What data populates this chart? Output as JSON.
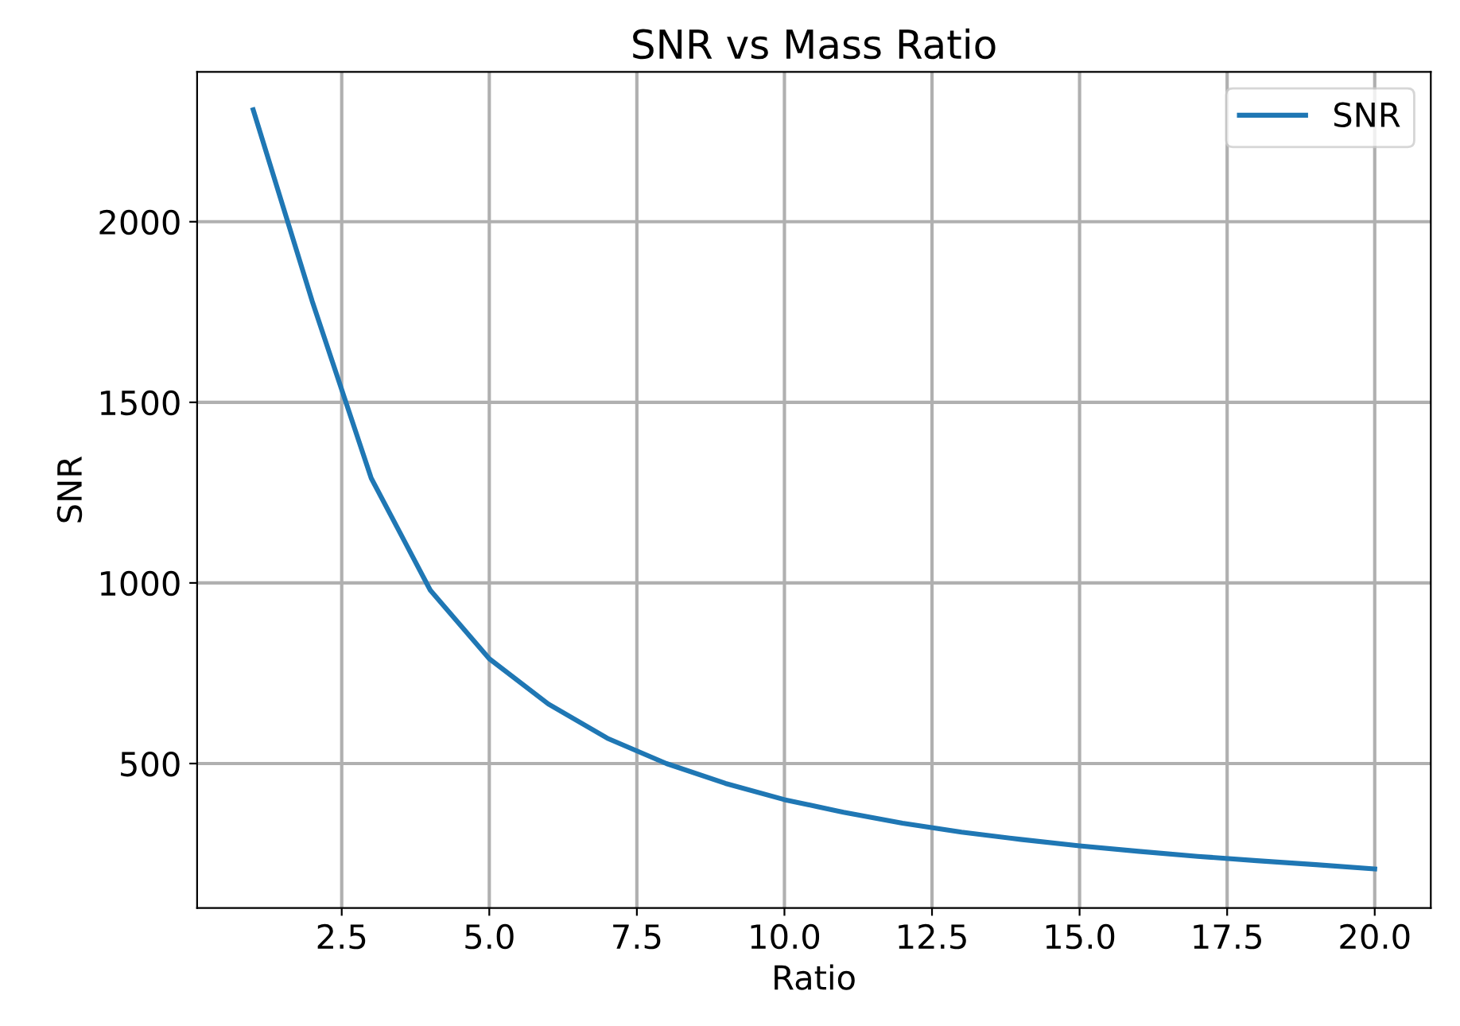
{
  "chart_data": {
    "type": "line",
    "title": "SNR vs Mass Ratio",
    "xlabel": "Ratio",
    "ylabel": "SNR",
    "x": [
      1,
      2,
      3,
      4,
      5,
      6,
      7,
      8,
      9,
      10,
      11,
      12,
      13,
      14,
      15,
      16,
      17,
      18,
      19,
      20
    ],
    "series": [
      {
        "name": "SNR",
        "color": "#1f77b4",
        "values": [
          2310,
          1780,
          1290,
          980,
          790,
          665,
          570,
          500,
          445,
          400,
          365,
          335,
          310,
          290,
          272,
          257,
          243,
          231,
          220,
          208
        ]
      }
    ],
    "xlim": [
      0.05,
      20.95
    ],
    "xticks": [
      {
        "value": 2.5,
        "label": "2.5"
      },
      {
        "value": 5,
        "label": "5.0"
      },
      {
        "value": 7.5,
        "label": "7.5"
      },
      {
        "value": 10,
        "label": "10.0"
      },
      {
        "value": 12.5,
        "label": "12.5"
      },
      {
        "value": 15,
        "label": "15.0"
      },
      {
        "value": 17.5,
        "label": "17.5"
      },
      {
        "value": 20,
        "label": "20.0"
      }
    ],
    "ylim": [
      100,
      2415
    ],
    "yticks": [
      500,
      1000,
      1500,
      2000
    ],
    "grid": true,
    "legend": "top right",
    "marker": "none",
    "line_style": "solid"
  }
}
